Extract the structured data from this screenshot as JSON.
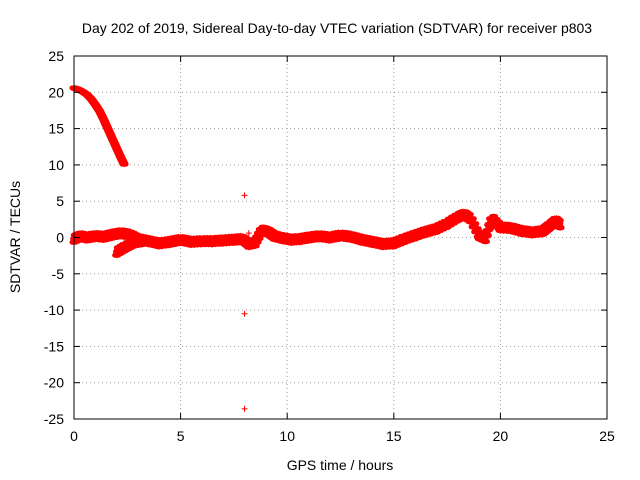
{
  "chart_data": {
    "type": "scatter",
    "title": "Day 202 of 2019, Sidereal Day-to-day VTEC variation (SDTVAR) for receiver p803",
    "xlabel": "GPS time / hours",
    "ylabel": "SDTVAR / TECUs",
    "xlim": [
      0,
      25
    ],
    "ylim": [
      -25,
      25
    ],
    "xticks": [
      0,
      5,
      10,
      15,
      20,
      25
    ],
    "yticks": [
      -25,
      -20,
      -15,
      -10,
      -5,
      0,
      5,
      10,
      15,
      20,
      25
    ],
    "grid": true,
    "marker": "+",
    "series": [
      {
        "name": "SDTVAR",
        "color": "#ff0000",
        "segments": [
          {
            "note": "early decay",
            "points": [
              [
                0.0,
                20.6
              ],
              [
                0.2,
                20.4
              ],
              [
                0.4,
                20.1
              ],
              [
                0.6,
                19.7
              ],
              [
                0.8,
                19.1
              ],
              [
                1.0,
                18.3
              ],
              [
                1.2,
                17.4
              ],
              [
                1.4,
                16.2
              ],
              [
                1.6,
                14.9
              ],
              [
                1.8,
                13.6
              ],
              [
                2.0,
                12.3
              ],
              [
                2.2,
                11.0
              ],
              [
                2.35,
                10.1
              ]
            ]
          },
          {
            "note": "baseline",
            "points": [
              [
                0.0,
                -0.2
              ],
              [
                0.3,
                0.2
              ],
              [
                0.6,
                0.0
              ],
              [
                1.0,
                0.2
              ],
              [
                1.4,
                0.1
              ],
              [
                1.8,
                0.4
              ],
              [
                2.2,
                0.6
              ],
              [
                2.6,
                0.4
              ],
              [
                3.0,
                -0.2
              ],
              [
                3.5,
                -0.5
              ],
              [
                4.0,
                -0.8
              ],
              [
                4.5,
                -0.6
              ],
              [
                5.0,
                -0.3
              ],
              [
                5.5,
                -0.6
              ],
              [
                6.0,
                -0.5
              ],
              [
                6.5,
                -0.5
              ],
              [
                7.0,
                -0.4
              ],
              [
                7.5,
                -0.3
              ],
              [
                7.9,
                -0.2
              ],
              [
                8.2,
                -0.9
              ],
              [
                8.5,
                -0.7
              ],
              [
                8.8,
                1.0
              ],
              [
                9.1,
                0.8
              ],
              [
                9.4,
                0.2
              ],
              [
                9.8,
                -0.1
              ],
              [
                10.2,
                -0.3
              ],
              [
                10.6,
                -0.2
              ],
              [
                11.0,
                0.0
              ],
              [
                11.5,
                0.2
              ],
              [
                12.0,
                0.0
              ],
              [
                12.5,
                0.3
              ],
              [
                13.0,
                0.1
              ],
              [
                13.5,
                -0.3
              ],
              [
                14.0,
                -0.6
              ],
              [
                14.5,
                -0.9
              ],
              [
                15.0,
                -0.8
              ],
              [
                15.5,
                -0.2
              ],
              [
                16.0,
                0.3
              ],
              [
                16.5,
                0.8
              ],
              [
                17.0,
                1.2
              ],
              [
                17.5,
                1.9
              ],
              [
                18.0,
                2.8
              ],
              [
                18.3,
                3.2
              ],
              [
                18.6,
                2.6
              ],
              [
                19.0,
                0.3
              ],
              [
                19.3,
                -0.1
              ],
              [
                19.6,
                2.7
              ],
              [
                20.0,
                1.4
              ],
              [
                20.5,
                1.3
              ],
              [
                21.0,
                0.9
              ],
              [
                21.5,
                0.7
              ],
              [
                22.0,
                0.9
              ],
              [
                22.3,
                1.6
              ],
              [
                22.6,
                2.3
              ],
              [
                22.8,
                1.8
              ]
            ]
          },
          {
            "note": "low branch",
            "points": [
              [
                2.0,
                -2.0
              ],
              [
                2.4,
                -1.3
              ],
              [
                2.8,
                -0.7
              ],
              [
                3.2,
                -0.5
              ]
            ]
          },
          {
            "note": "outliers",
            "points": [
              [
                8.0,
                5.8
              ],
              [
                8.0,
                -10.5
              ],
              [
                8.0,
                -23.6
              ],
              [
                8.2,
                0.6
              ],
              [
                16.4,
                0.4
              ],
              [
                17.0,
                0.9
              ]
            ]
          }
        ]
      }
    ]
  }
}
